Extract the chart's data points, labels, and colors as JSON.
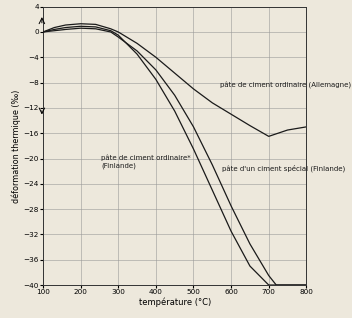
{
  "xlabel": "température (°C)",
  "ylabel": "déformation thermique (‰)",
  "xlim": [
    100,
    800
  ],
  "ylim": [
    -40,
    4
  ],
  "xticks": [
    100,
    200,
    300,
    400,
    500,
    600,
    700,
    800
  ],
  "yticks": [
    4,
    0,
    -4,
    -8,
    -12,
    -16,
    -20,
    -24,
    -28,
    -32,
    -36,
    -40
  ],
  "grid_color": "#999999",
  "bg_color": "#ede8dc",
  "curve1_x": [
    100,
    130,
    160,
    200,
    240,
    280,
    300,
    350,
    400,
    450,
    500,
    550,
    600,
    650,
    700,
    750,
    800
  ],
  "curve1_y": [
    0.0,
    0.7,
    1.1,
    1.3,
    1.2,
    0.5,
    0.0,
    -1.8,
    -4.0,
    -6.5,
    -9.0,
    -11.2,
    -13.0,
    -14.8,
    -16.5,
    -15.5,
    -15.0
  ],
  "curve2_x": [
    100,
    130,
    160,
    200,
    240,
    280,
    300,
    350,
    400,
    450,
    500,
    550,
    600,
    650,
    700,
    720,
    750,
    800
  ],
  "curve2_y": [
    0.0,
    0.4,
    0.7,
    0.9,
    0.8,
    0.2,
    -0.5,
    -3.5,
    -7.5,
    -12.5,
    -18.5,
    -25.0,
    -31.5,
    -37.0,
    -40.0,
    -40.0,
    -40.0,
    -40.0
  ],
  "curve3_x": [
    100,
    130,
    160,
    200,
    240,
    280,
    300,
    350,
    400,
    450,
    500,
    550,
    600,
    650,
    700,
    720,
    750,
    800
  ],
  "curve3_y": [
    0.0,
    0.2,
    0.4,
    0.6,
    0.5,
    0.0,
    -0.8,
    -3.0,
    -6.0,
    -10.0,
    -15.0,
    -21.0,
    -27.5,
    -33.5,
    -38.5,
    -40.0,
    -40.0,
    -40.0
  ],
  "ann1_text": "pâte de ciment ordinaire (Allemagne)",
  "ann1_x": 570,
  "ann1_y": -8.5,
  "ann2_text": "pâte de ciment ordinaire*\n(Finlande)",
  "ann2_x": 255,
  "ann2_y": -20.5,
  "ann3_text": "pâte d'un ciment spécial (Finlande)",
  "ann3_x": 575,
  "ann3_y": -21.5,
  "curve_color": "#1a1a1a",
  "xlabel_fontsize": 6.0,
  "ylabel_fontsize": 5.8,
  "tick_fontsize": 5.2,
  "ann_fontsize": 5.0
}
